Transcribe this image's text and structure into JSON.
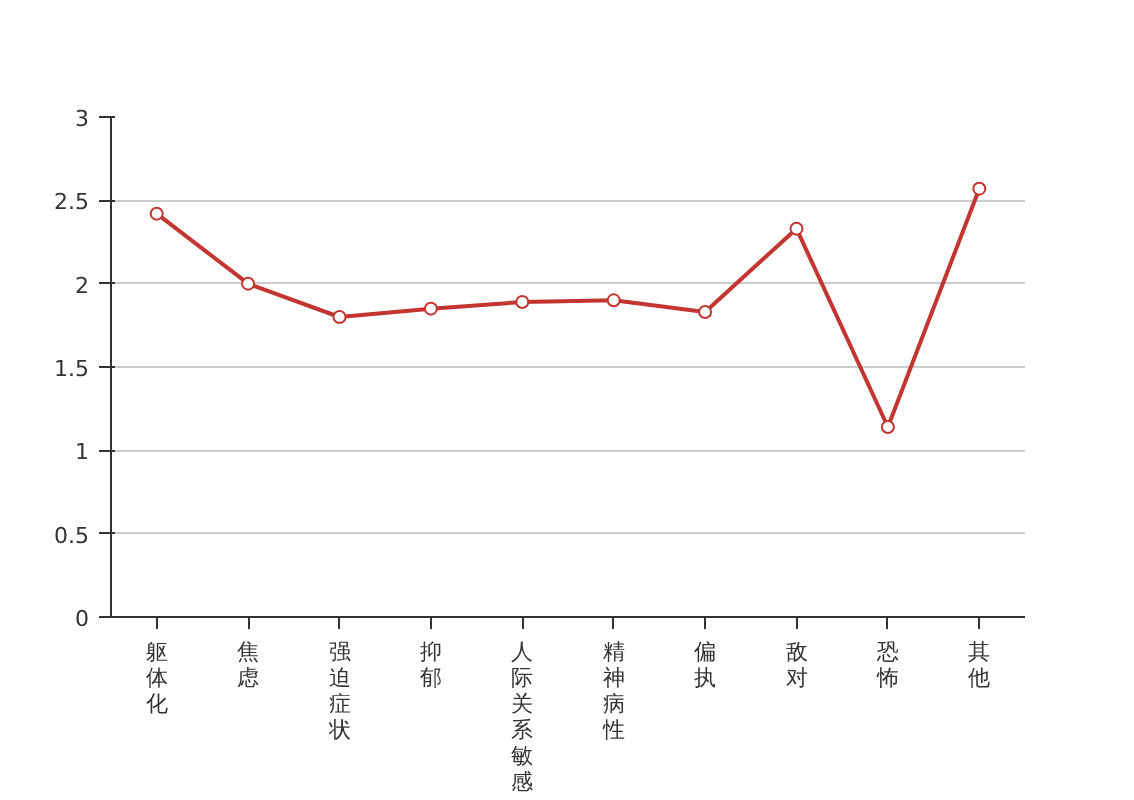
{
  "chart_data": {
    "type": "line",
    "categories": [
      "躯体化",
      "焦虑",
      "强迫症状",
      "抑郁",
      "人际关系敏感",
      "精神病性",
      "偏执",
      "敌对",
      "恐怖",
      "其他"
    ],
    "series": [
      {
        "color": "#c23531",
        "values": [
          2.42,
          2.0,
          1.8,
          1.85,
          1.89,
          1.9,
          1.83,
          2.33,
          1.14,
          2.57
        ]
      }
    ],
    "ylim": [
      0,
      3
    ],
    "yticks": [
      0,
      0.5,
      1,
      1.5,
      2,
      2.5,
      3
    ],
    "grid": "y",
    "marker": "circle",
    "line_style": "solid"
  }
}
